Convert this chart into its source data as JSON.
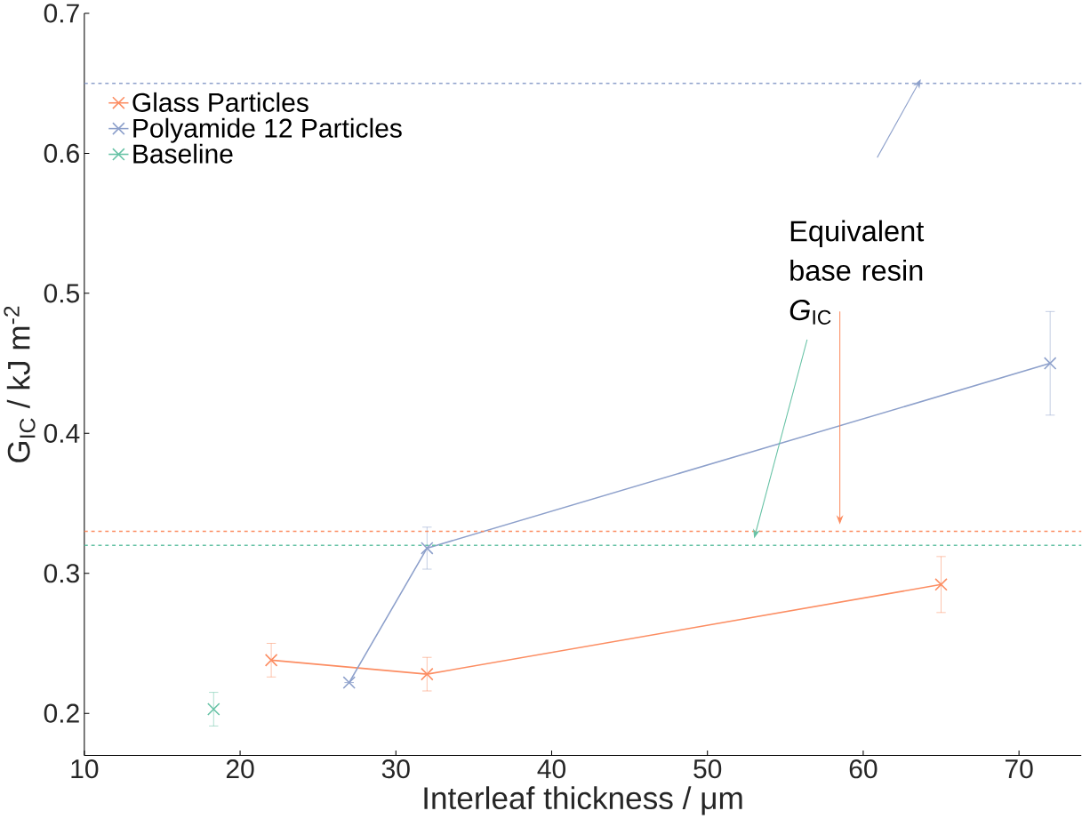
{
  "chart_data": {
    "type": "line",
    "xlabel": "Interleaf thickness / μm",
    "ylabel": "G$_{IC}$ / kJ m$^{-2}$",
    "xlim": [
      10,
      74
    ],
    "ylim": [
      0.17,
      0.7
    ],
    "xticks": [
      10,
      20,
      30,
      40,
      50,
      60,
      70
    ],
    "yticks": [
      0.2,
      0.3,
      0.4,
      0.5,
      0.6,
      0.7
    ],
    "series": [
      {
        "name": "Glass Particles",
        "color": "#fc8d62",
        "x": [
          22,
          32,
          65
        ],
        "values": [
          0.238,
          0.228,
          0.292
        ],
        "errors": [
          0.012,
          0.012,
          0.02
        ]
      },
      {
        "name": "Polyamide 12 Particles",
        "color": "#8da0cb",
        "x": [
          27,
          32,
          72
        ],
        "values": [
          0.222,
          0.318,
          0.45
        ],
        "errors": [
          null,
          0.015,
          0.037
        ]
      },
      {
        "name": "Baseline",
        "color": "#66c2a5",
        "x": [
          18.3
        ],
        "values": [
          0.203
        ],
        "errors": [
          0.012
        ]
      }
    ],
    "ref_lines": [
      {
        "axis": "y",
        "value": 0.65,
        "color": "#8da0cb",
        "line_style": "dashed"
      },
      {
        "axis": "y",
        "value": 0.33,
        "color": "#fc8d62",
        "line_style": "dashed"
      },
      {
        "axis": "y",
        "value": 0.32,
        "color": "#66c2a5",
        "line_style": "dashed"
      }
    ],
    "annotations": [
      "Equivalent base resin *G*$_{IC}$"
    ],
    "marker": "cross",
    "line_style": "solid",
    "legend": "top left",
    "grid": false
  }
}
